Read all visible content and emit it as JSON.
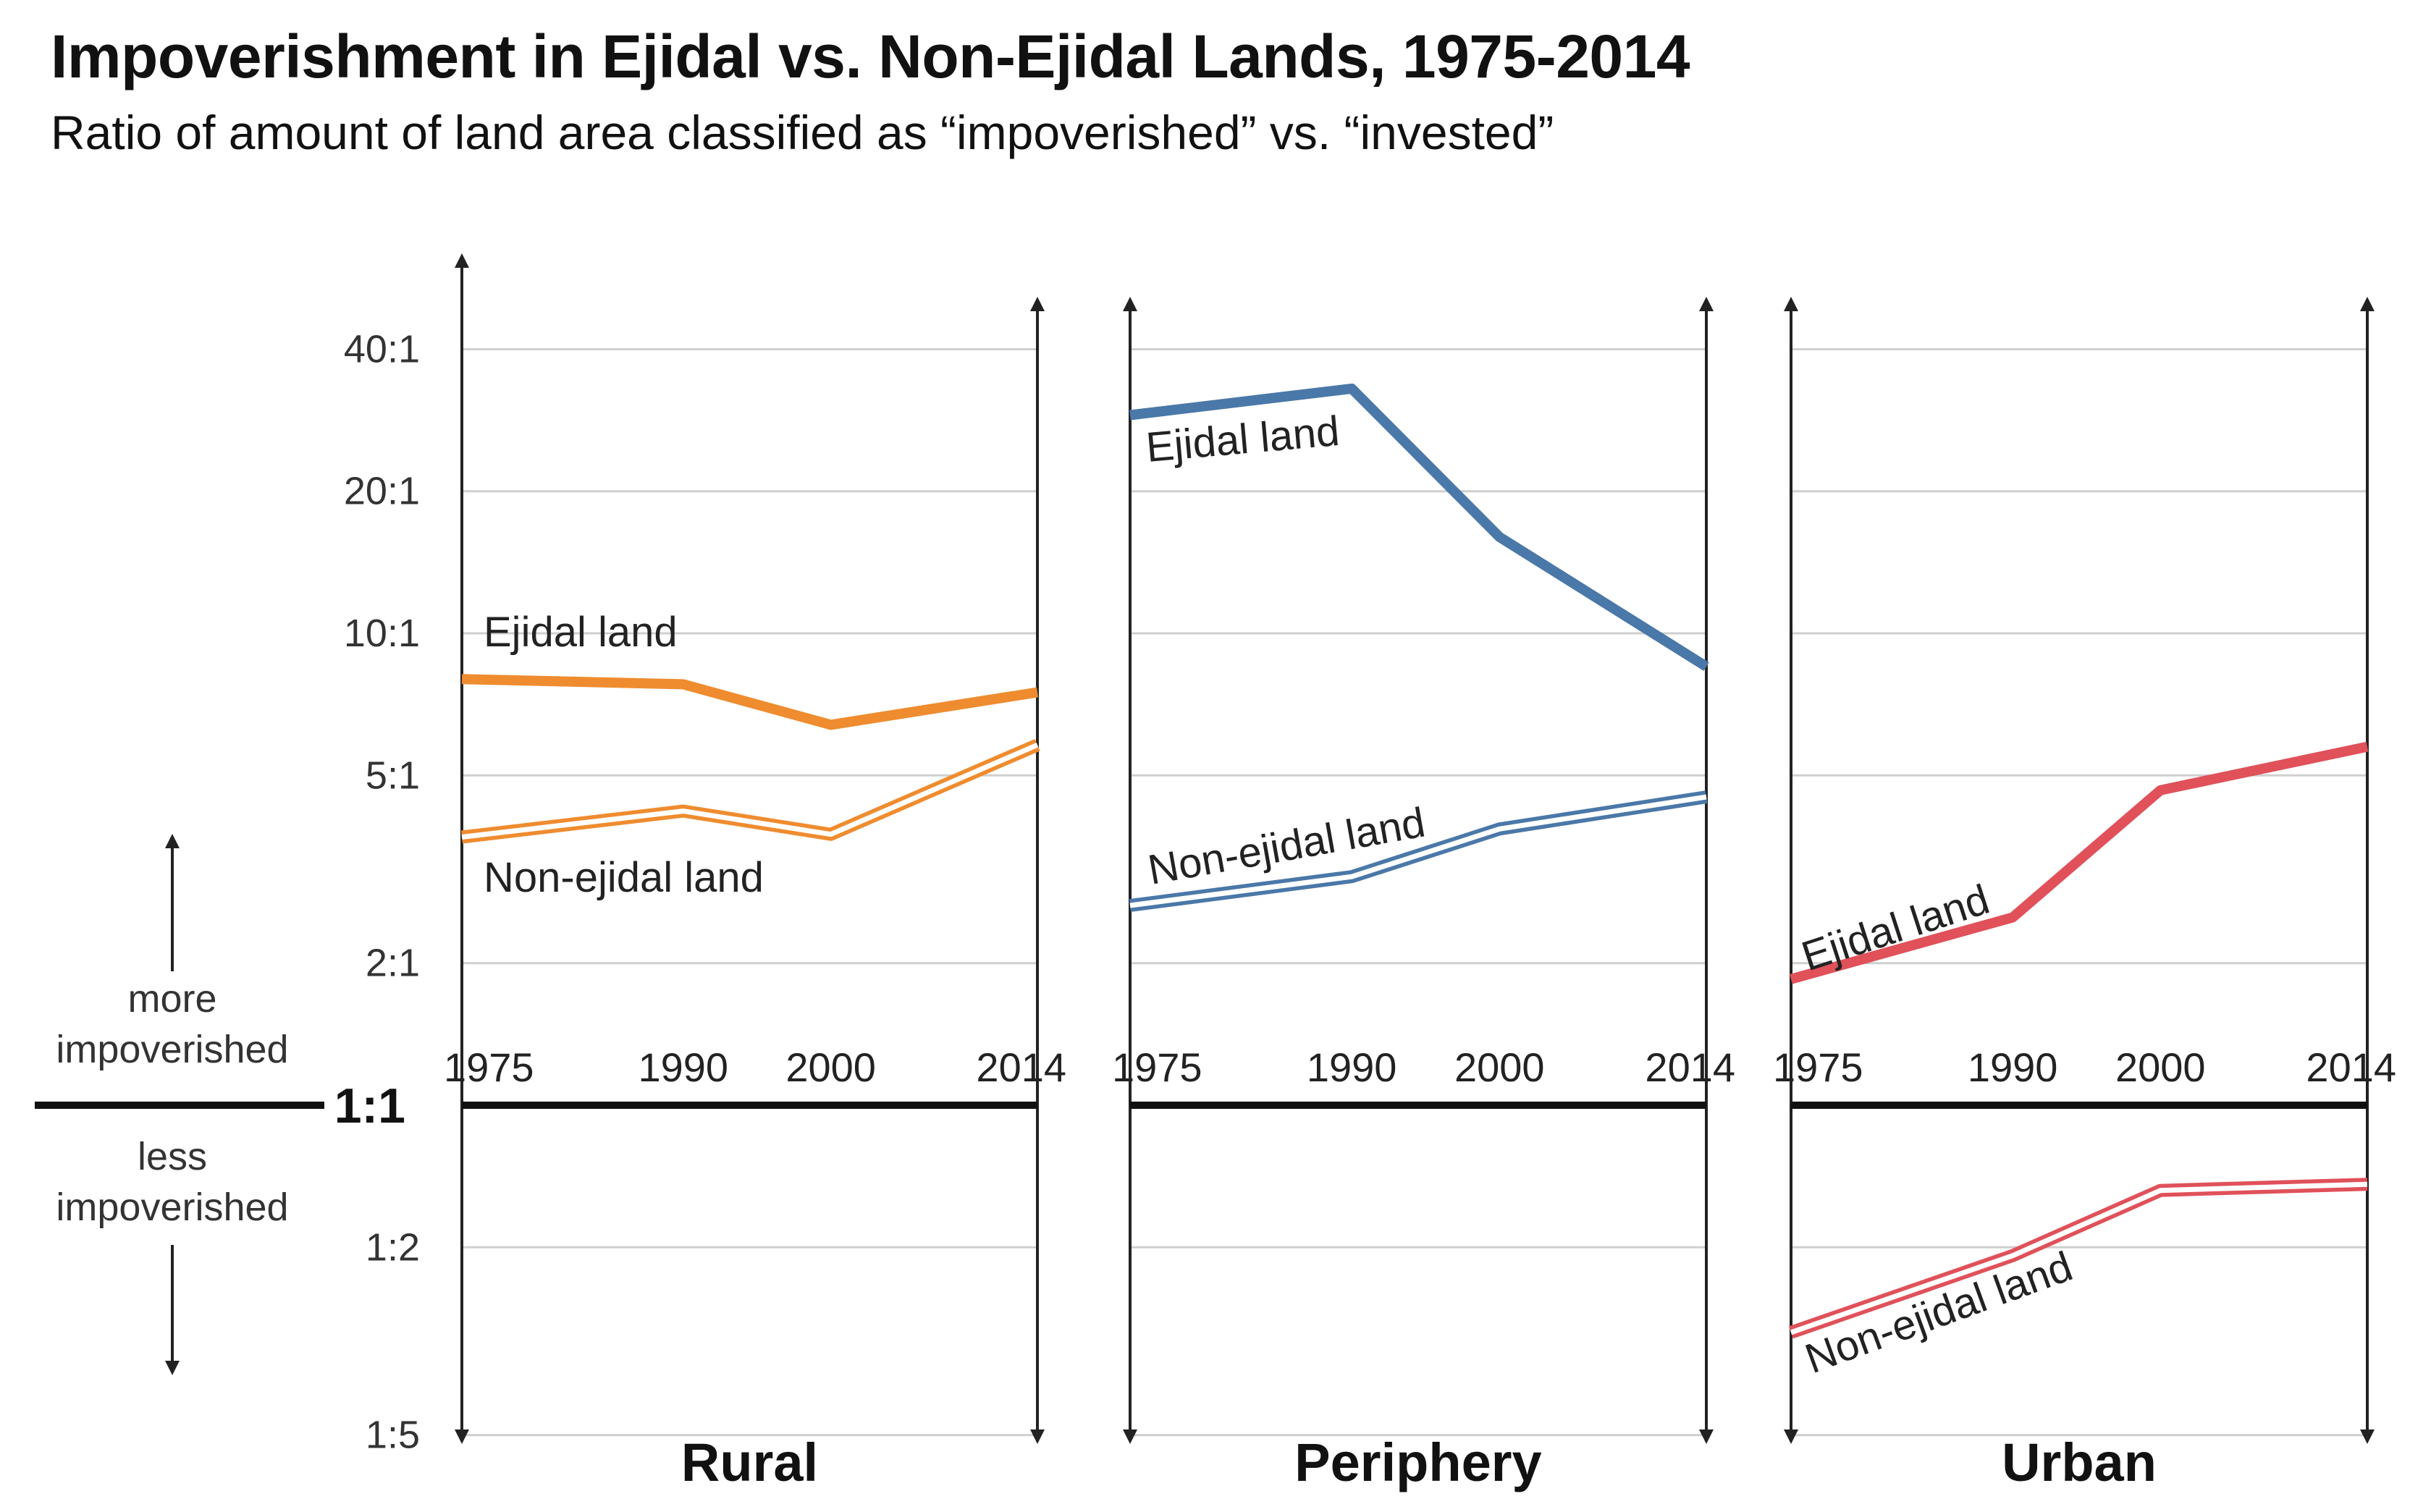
{
  "title": "Impoverishment in Ejidal vs. Non-Ejidal Lands, 1975-2014",
  "subtitle": "Ratio of amount of land area classified as “impoverished” vs. “invested”",
  "direction_labels": {
    "more": [
      "more",
      "impoverished"
    ],
    "less": [
      "less",
      "impoverished"
    ]
  },
  "colors": {
    "Rural": "#ef8c2f",
    "Periphery": "#4a78a8",
    "Urban": "#e0515a",
    "axis": "#222222",
    "grid": "#cfcfcf"
  },
  "chart_data": {
    "type": "line",
    "y_scale": "log",
    "y_ticks": [
      {
        "value": 40,
        "label": "40:1"
      },
      {
        "value": 20,
        "label": "20:1"
      },
      {
        "value": 10,
        "label": "10:1"
      },
      {
        "value": 5,
        "label": "5:1"
      },
      {
        "value": 2,
        "label": "2:1"
      },
      {
        "value": 1,
        "label": "1:1"
      },
      {
        "value": 0.5,
        "label": "1:2"
      },
      {
        "value": 0.2,
        "label": "1:5"
      }
    ],
    "x": [
      1975,
      1990,
      2000,
      2014
    ],
    "grid": true,
    "panels": [
      {
        "name": "Rural",
        "series": [
          {
            "name": "Ejidal land",
            "style": "thick",
            "values": [
              8.0,
              7.8,
              6.4,
              7.5
            ]
          },
          {
            "name": "Non-ejidal land",
            "style": "double",
            "values": [
              3.7,
              4.2,
              3.75,
              5.8
            ]
          }
        ]
      },
      {
        "name": "Periphery",
        "series": [
          {
            "name": "Ejidal land",
            "style": "thick",
            "values": [
              29,
              33,
              16,
              8.5
            ]
          },
          {
            "name": "Non-ejidal land",
            "style": "double",
            "values": [
              2.65,
              3.05,
              3.85,
              4.5
            ]
          }
        ]
      },
      {
        "name": "Urban",
        "series": [
          {
            "name": "Ejidal land",
            "style": "thick",
            "values": [
              1.85,
              2.5,
              4.65,
              5.75
            ]
          },
          {
            "name": "Non-ejidal land",
            "style": "double",
            "values": [
              0.33,
              0.48,
              0.66,
              0.68
            ]
          }
        ]
      }
    ]
  }
}
